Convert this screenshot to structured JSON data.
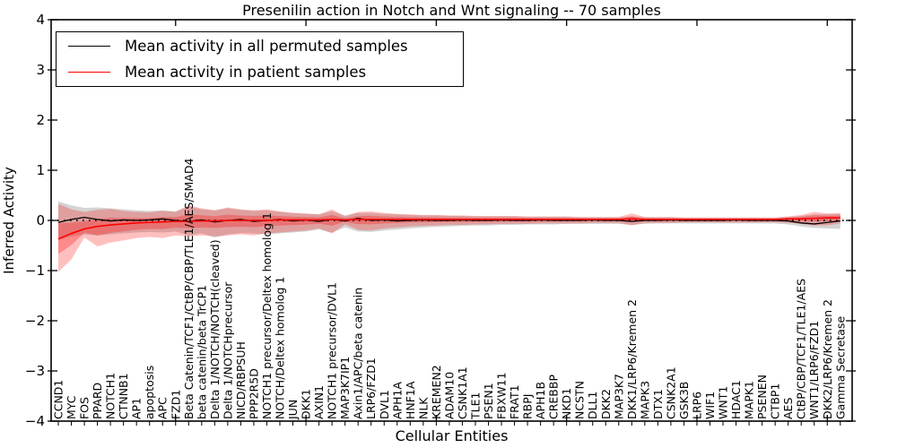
{
  "title": "Presenilin action in Notch and Wnt signaling -- 70 samples",
  "legend": {
    "items": [
      {
        "label": "Mean activity in all permuted samples",
        "color": "#000000"
      },
      {
        "label": "Mean activity in patient samples",
        "color": "#ff0000"
      }
    ]
  },
  "axes": {
    "ylabel": "Inferred Activity",
    "xlabel": "Cellular Entities",
    "y_ticks": [
      "4",
      "3",
      "2",
      "1",
      "0",
      "−1",
      "−2",
      "−3",
      "−4"
    ]
  },
  "chart_data": {
    "type": "line",
    "title": "Presenilin action in Notch and Wnt signaling -- 70 samples",
    "xlabel": "Cellular Entities",
    "ylabel": "Inferred Activity",
    "ylim": [
      -4,
      4
    ],
    "grid": false,
    "legend_position": "upper left",
    "zero_line": {
      "style": "dotted",
      "color": "#000000",
      "y": 0
    },
    "categories": [
      "CCND1",
      "MYC",
      "FOS",
      "PPARD",
      "NOTCH1",
      "CTNNB1",
      "AP1",
      "apoptosis",
      "APC",
      "FZD1",
      "Beta Catenin/TCF1/CtBP/CBP/TLE1/AES/SMAD4",
      "beta catenin/beta TrCP1",
      "Delta 1/NOTCH/NOTCH(cleaved)",
      "Delta 1/NOTCHprecursor",
      "NICD/RBPSUH",
      "PPP2R5D",
      "NOTCH1 precursor/Deltex homolog 1",
      "NOTCH/Deltex homolog 1",
      "JUN",
      "DKK1",
      "AXIN1",
      "NOTCH1 precursor/DVL1",
      "MAP3K7IP1",
      "Axin1/APC/beta catenin",
      "LRP6/FZD1",
      "DVL1",
      "APH1A",
      "HNF1A",
      "NLK",
      "KREMEN2",
      "ADAM10",
      "CSNK1A1",
      "TLE1",
      "PSEN1",
      "FBXW11",
      "FRAT1",
      "RBPJ",
      "APH1B",
      "CREBBP",
      "NKD1",
      "NCSTN",
      "DLL1",
      "DKK2",
      "MAP3K7",
      "DKK1/LRP6/Kremen 2",
      "MAPK3",
      "DTX1",
      "CSNK2A1",
      "GSK3B",
      "LRP6",
      "WIF1",
      "WNT1",
      "HDAC1",
      "MAPK1",
      "PSENEN",
      "CTBP1",
      "AES",
      "CtBP/CBP/TCF1/TLE1/AES",
      "WNT1/LRP6/FZD1",
      "DKK2/LRP6/Kremen 2",
      "Gamma Secretase"
    ],
    "series": [
      {
        "name": "Mean activity in all permuted samples",
        "color": "#000000",
        "values": [
          -0.04,
          0.02,
          0.06,
          0.02,
          -0.01,
          0.01,
          0.0,
          0.01,
          0.03,
          0.0,
          -0.02,
          0.01,
          -0.03,
          0.0,
          0.02,
          -0.02,
          0.0,
          0.02,
          -0.01,
          0.01,
          -0.02,
          0.02,
          -0.01,
          0.04,
          0.0,
          0.01,
          -0.01,
          0.0,
          0.01,
          0.0,
          0.0,
          0.01,
          0.0,
          0.0,
          0.01,
          0.0,
          0.0,
          0.01,
          0.0,
          0.0,
          0.0,
          0.01,
          0.0,
          0.0,
          -0.02,
          0.0,
          0.0,
          0.01,
          0.0,
          0.0,
          0.0,
          0.0,
          0.01,
          0.0,
          0.0,
          0.0,
          -0.01,
          -0.05,
          -0.07,
          -0.04,
          -0.01
        ]
      },
      {
        "name": "Mean activity in patient samples",
        "color": "#ff0000",
        "values": [
          -0.37,
          -0.26,
          -0.17,
          -0.12,
          -0.09,
          -0.07,
          -0.05,
          -0.04,
          -0.03,
          -0.02,
          -0.02,
          -0.01,
          -0.01,
          0.0,
          0.0,
          0.0,
          0.0,
          0.01,
          0.01,
          0.01,
          0.01,
          0.02,
          0.01,
          0.02,
          0.02,
          0.02,
          0.02,
          0.02,
          0.02,
          0.02,
          0.02,
          0.02,
          0.02,
          0.02,
          0.02,
          0.02,
          0.02,
          0.02,
          0.02,
          0.02,
          0.02,
          0.02,
          0.02,
          0.02,
          0.03,
          0.02,
          0.02,
          0.02,
          0.02,
          0.02,
          0.02,
          0.02,
          0.02,
          0.02,
          0.02,
          0.02,
          0.03,
          0.03,
          0.04,
          0.05,
          0.05
        ]
      }
    ],
    "bands": [
      {
        "name": "permuted-samples-spread",
        "color": "#787878",
        "alpha": 0.32,
        "upper": [
          0.38,
          0.3,
          0.25,
          0.26,
          0.24,
          0.22,
          0.2,
          0.19,
          0.2,
          0.18,
          0.28,
          0.22,
          0.2,
          0.24,
          0.21,
          0.19,
          0.2,
          0.17,
          0.15,
          0.13,
          0.12,
          0.18,
          0.1,
          0.15,
          0.15,
          0.13,
          0.12,
          0.11,
          0.1,
          0.1,
          0.09,
          0.09,
          0.08,
          0.08,
          0.08,
          0.08,
          0.07,
          0.07,
          0.07,
          0.07,
          0.06,
          0.06,
          0.06,
          0.06,
          0.08,
          0.06,
          0.06,
          0.06,
          0.05,
          0.05,
          0.05,
          0.05,
          0.05,
          0.05,
          0.05,
          0.05,
          0.07,
          0.09,
          0.12,
          0.12,
          0.13
        ],
        "lower": [
          -0.38,
          -0.32,
          -0.28,
          -0.3,
          -0.28,
          -0.26,
          -0.24,
          -0.23,
          -0.24,
          -0.22,
          -0.3,
          -0.26,
          -0.34,
          -0.28,
          -0.25,
          -0.26,
          -0.28,
          -0.26,
          -0.24,
          -0.22,
          -0.18,
          -0.24,
          -0.14,
          -0.22,
          -0.23,
          -0.2,
          -0.18,
          -0.16,
          -0.14,
          -0.13,
          -0.12,
          -0.11,
          -0.1,
          -0.1,
          -0.09,
          -0.09,
          -0.08,
          -0.08,
          -0.08,
          -0.07,
          -0.07,
          -0.07,
          -0.07,
          -0.07,
          -0.09,
          -0.07,
          -0.06,
          -0.06,
          -0.06,
          -0.06,
          -0.06,
          -0.06,
          -0.06,
          -0.06,
          -0.06,
          -0.06,
          -0.08,
          -0.12,
          -0.15,
          -0.16,
          -0.17
        ]
      },
      {
        "name": "patient-samples-spread-outer",
        "color": "#ff0000",
        "alpha": 0.25,
        "upper": [
          0.33,
          0.22,
          0.17,
          0.21,
          0.23,
          0.19,
          0.17,
          0.16,
          0.19,
          0.17,
          0.3,
          0.24,
          0.2,
          0.26,
          0.22,
          0.2,
          0.22,
          0.18,
          0.15,
          0.14,
          0.12,
          0.22,
          0.08,
          0.17,
          0.18,
          0.15,
          0.13,
          0.12,
          0.11,
          0.11,
          0.1,
          0.1,
          0.09,
          0.09,
          0.09,
          0.09,
          0.08,
          0.08,
          0.08,
          0.08,
          0.07,
          0.07,
          0.07,
          0.07,
          0.14,
          0.07,
          0.07,
          0.07,
          0.06,
          0.06,
          0.06,
          0.06,
          0.06,
          0.06,
          0.06,
          0.06,
          0.08,
          0.11,
          0.17,
          0.14,
          0.15
        ],
        "lower": [
          -1.03,
          -0.78,
          -0.34,
          -0.52,
          -0.44,
          -0.4,
          -0.35,
          -0.33,
          -0.35,
          -0.3,
          -0.32,
          -0.3,
          -0.32,
          -0.3,
          -0.28,
          -0.3,
          -0.26,
          -0.24,
          -0.22,
          -0.2,
          -0.16,
          -0.26,
          -0.08,
          -0.19,
          -0.2,
          -0.16,
          -0.14,
          -0.12,
          -0.11,
          -0.1,
          -0.09,
          -0.09,
          -0.08,
          -0.08,
          -0.07,
          -0.07,
          -0.07,
          -0.06,
          -0.06,
          -0.06,
          -0.06,
          -0.05,
          -0.05,
          -0.05,
          -0.1,
          -0.05,
          -0.05,
          -0.05,
          -0.04,
          -0.04,
          -0.04,
          -0.04,
          -0.04,
          -0.04,
          -0.04,
          -0.04,
          -0.05,
          -0.07,
          -0.1,
          -0.1,
          -0.06
        ]
      },
      {
        "name": "patient-samples-spread-inner",
        "color": "#ff0000",
        "alpha": 0.28,
        "inner_fraction": 0.45
      }
    ]
  }
}
